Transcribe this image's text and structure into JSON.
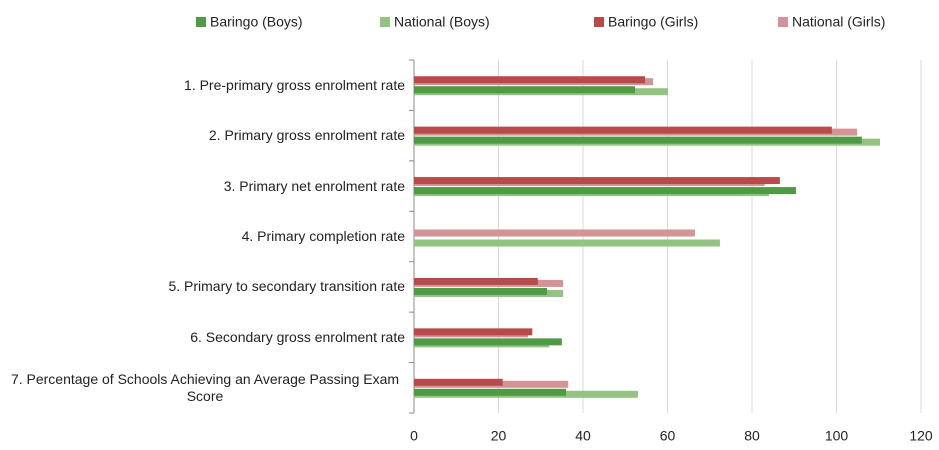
{
  "chart_data": {
    "type": "bar",
    "orientation": "horizontal",
    "categories": [
      "1. Pre-primary gross enrolment rate",
      "2. Primary gross enrolment rate",
      "3. Primary net enrolment rate",
      "4. Primary completion rate",
      "5. Primary to secondary transition rate",
      "6. Secondary gross enrolment rate",
      "7. Percentage of Schools Achieving an Average Passing Exam Score"
    ],
    "series": [
      {
        "name": "Baringo (Boys)",
        "color": "#4e9a45",
        "values": [
          52.3,
          106,
          90.4,
          null,
          31.5,
          35,
          36
        ]
      },
      {
        "name": "National (Boys)",
        "color": "#93c283",
        "values": [
          60.1,
          110.3,
          84,
          72.4,
          35.3,
          32,
          53
        ]
      },
      {
        "name": "Baringo (Girls)",
        "color": "#b94a4c",
        "values": [
          54.7,
          98.9,
          86.6,
          null,
          29.3,
          28,
          21
        ]
      },
      {
        "name": "National (Girls)",
        "color": "#d49396",
        "values": [
          56.6,
          104.9,
          83,
          66.5,
          35.3,
          27,
          36.5
        ]
      }
    ],
    "xlim": [
      0,
      120
    ],
    "xticks": [
      0,
      20,
      40,
      60,
      80,
      100,
      120
    ],
    "grid": true,
    "legend": "top"
  }
}
